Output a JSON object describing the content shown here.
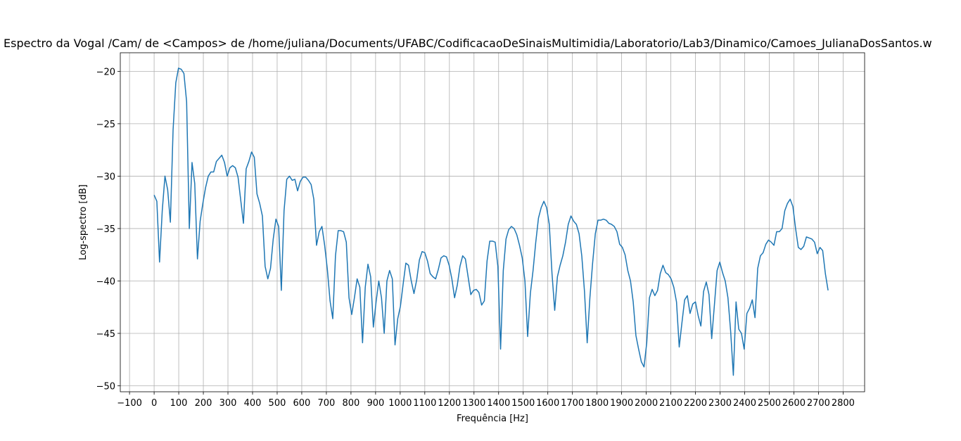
{
  "chart_data": {
    "type": "line",
    "title": "Espectro da Vogal /Cam/ de <Campos> de /home/juliana/Documents/UFABC/CodificacaoDeSinaisMultimidia/Laboratorio/Lab3/Dinamico/Camoes_JulianaDosSantos.w",
    "xlabel": "Frequência [Hz]",
    "ylabel": "Log-spectro [dB]",
    "color": "#1f77b4",
    "grid": true,
    "xlim": [
      -137.5,
      2887.5
    ],
    "ylim": [
      -50.57,
      -18.23
    ],
    "xticks": [
      {
        "value": -100,
        "label": "−100"
      },
      0,
      100,
      200,
      300,
      400,
      500,
      600,
      700,
      800,
      900,
      1000,
      1100,
      1200,
      1300,
      1400,
      1500,
      1600,
      1700,
      1800,
      1900,
      2000,
      2100,
      2200,
      2300,
      2400,
      2500,
      2600,
      2700,
      2800
    ],
    "yticks": [
      {
        "value": -50,
        "label": "−50"
      },
      {
        "value": -45,
        "label": "−45"
      },
      {
        "value": -40,
        "label": "−40"
      },
      {
        "value": -35,
        "label": "−35"
      },
      {
        "value": -30,
        "label": "−30"
      },
      {
        "value": -25,
        "label": "−25"
      },
      {
        "value": -20,
        "label": "−20"
      }
    ],
    "x": [
      0,
      11,
      22,
      33,
      44,
      55,
      66,
      77,
      88,
      99,
      110,
      121,
      132,
      143,
      154,
      165,
      176,
      187,
      198,
      209,
      220,
      231,
      242,
      253,
      264,
      275,
      286,
      297,
      308,
      319,
      330,
      341,
      352,
      363,
      374,
      385,
      396,
      407,
      418,
      429,
      440,
      451,
      462,
      473,
      484,
      495,
      506,
      517,
      528,
      539,
      550,
      561,
      572,
      583,
      594,
      605,
      616,
      627,
      638,
      649,
      660,
      671,
      682,
      693,
      704,
      715,
      726,
      737,
      748,
      759,
      770,
      781,
      792,
      803,
      814,
      825,
      836,
      847,
      858,
      869,
      880,
      891,
      902,
      913,
      924,
      935,
      946,
      957,
      968,
      979,
      990,
      1001,
      1012,
      1023,
      1034,
      1045,
      1056,
      1067,
      1078,
      1089,
      1100,
      1111,
      1122,
      1133,
      1144,
      1155,
      1166,
      1177,
      1188,
      1199,
      1210,
      1221,
      1232,
      1243,
      1254,
      1265,
      1276,
      1287,
      1298,
      1309,
      1320,
      1331,
      1342,
      1353,
      1364,
      1375,
      1386,
      1397,
      1408,
      1419,
      1430,
      1441,
      1452,
      1463,
      1474,
      1485,
      1496,
      1507,
      1518,
      1529,
      1540,
      1551,
      1562,
      1573,
      1584,
      1595,
      1606,
      1617,
      1628,
      1639,
      1650,
      1661,
      1672,
      1683,
      1694,
      1705,
      1716,
      1727,
      1738,
      1749,
      1760,
      1771,
      1782,
      1793,
      1804,
      1815,
      1826,
      1837,
      1848,
      1859,
      1870,
      1881,
      1892,
      1903,
      1914,
      1925,
      1936,
      1947,
      1958,
      1969,
      1980,
      1991,
      2002,
      2013,
      2024,
      2035,
      2046,
      2057,
      2068,
      2079,
      2090,
      2101,
      2112,
      2123,
      2134,
      2145,
      2156,
      2167,
      2178,
      2189,
      2200,
      2211,
      2222,
      2233,
      2244,
      2255,
      2266,
      2277,
      2288,
      2299,
      2310,
      2321,
      2332,
      2343,
      2354,
      2365,
      2376,
      2387,
      2398,
      2409,
      2420,
      2431,
      2442,
      2453,
      2464,
      2475,
      2486,
      2497,
      2508,
      2519,
      2530,
      2541,
      2552,
      2563,
      2574,
      2585,
      2596,
      2607,
      2618,
      2629,
      2640,
      2651,
      2662,
      2673,
      2684,
      2695,
      2706,
      2717,
      2728,
      2739
    ],
    "values": [
      -31.8,
      -32.4,
      -38.2,
      -33.3,
      -30,
      -31.3,
      -34.4,
      -25.6,
      -21.1,
      -19.7,
      -19.8,
      -20.2,
      -22.9,
      -35,
      -28.7,
      -30.7,
      -37.9,
      -34.3,
      -32.6,
      -31.1,
      -30,
      -29.6,
      -29.6,
      -28.6,
      -28.3,
      -28,
      -28.7,
      -30,
      -29.2,
      -29,
      -29.2,
      -30.1,
      -32.3,
      -34.5,
      -29.3,
      -28.6,
      -27.7,
      -28.2,
      -31.7,
      -32.6,
      -33.8,
      -38.6,
      -39.8,
      -38.8,
      -36,
      -34.1,
      -34.8,
      -40.9,
      -33.3,
      -30.3,
      -30,
      -30.4,
      -30.3,
      -31.4,
      -30.5,
      -30.1,
      -30.1,
      -30.4,
      -30.8,
      -32.2,
      -36.6,
      -35.3,
      -34.8,
      -36.6,
      -38.9,
      -41.9,
      -43.6,
      -37.6,
      -35.2,
      -35.2,
      -35.3,
      -36.3,
      -41.6,
      -43.2,
      -41.6,
      -39.8,
      -40.6,
      -45.9,
      -40.6,
      -38.4,
      -39.6,
      -44.4,
      -42,
      -40,
      -41.6,
      -45,
      -40,
      -39,
      -39.8,
      -46.1,
      -43.6,
      -42.4,
      -40.3,
      -38.3,
      -38.5,
      -40,
      -41.2,
      -39.9,
      -38,
      -37.2,
      -37.3,
      -38.1,
      -39.3,
      -39.6,
      -39.8,
      -38.9,
      -37.8,
      -37.6,
      -37.7,
      -38.5,
      -39.8,
      -41.6,
      -40.4,
      -38.6,
      -37.6,
      -37.9,
      -39.6,
      -41.3,
      -40.9,
      -40.8,
      -41.1,
      -42.3,
      -41.9,
      -38.1,
      -36.2,
      -36.2,
      -36.3,
      -38.6,
      -46.5,
      -39,
      -36,
      -35.1,
      -34.8,
      -35,
      -35.6,
      -36.6,
      -37.8,
      -40,
      -45.3,
      -41.2,
      -39,
      -36.3,
      -34,
      -33,
      -32.4,
      -33,
      -34.6,
      -39.3,
      -42.8,
      -39.6,
      -38.5,
      -37.6,
      -36.3,
      -34.6,
      -33.8,
      -34.3,
      -34.6,
      -35.5,
      -37.6,
      -41,
      -45.9,
      -41.6,
      -38.3,
      -35.5,
      -34.2,
      -34.2,
      -34.1,
      -34.2,
      -34.5,
      -34.6,
      -34.8,
      -35.3,
      -36.5,
      -36.8,
      -37.5,
      -39,
      -40,
      -42,
      -45.2,
      -46.5,
      -47.7,
      -48.2,
      -45.9,
      -41.6,
      -40.8,
      -41.4,
      -40.9,
      -39.3,
      -38.5,
      -39.2,
      -39.4,
      -39.8,
      -40.6,
      -42,
      -46.3,
      -44,
      -41.8,
      -41.4,
      -43.1,
      -42.2,
      -42,
      -43.3,
      -44.3,
      -41,
      -40.1,
      -41.3,
      -45.5,
      -42.3,
      -39,
      -38.2,
      -39.2,
      -40,
      -41.6,
      -44.8,
      -49,
      -42,
      -44.6,
      -45,
      -46.5,
      -43.1,
      -42.6,
      -41.8,
      -43.5,
      -38.8,
      -37.6,
      -37.3,
      -36.5,
      -36.1,
      -36.3,
      -36.6,
      -35.3,
      -35.3,
      -35,
      -33.3,
      -32.6,
      -32.2,
      -32.9,
      -35,
      -36.8,
      -37,
      -36.7,
      -35.8,
      -35.9,
      -36,
      -36.3,
      -37.4,
      -36.8,
      -37.1,
      -39.3,
      -40.9
    ]
  }
}
